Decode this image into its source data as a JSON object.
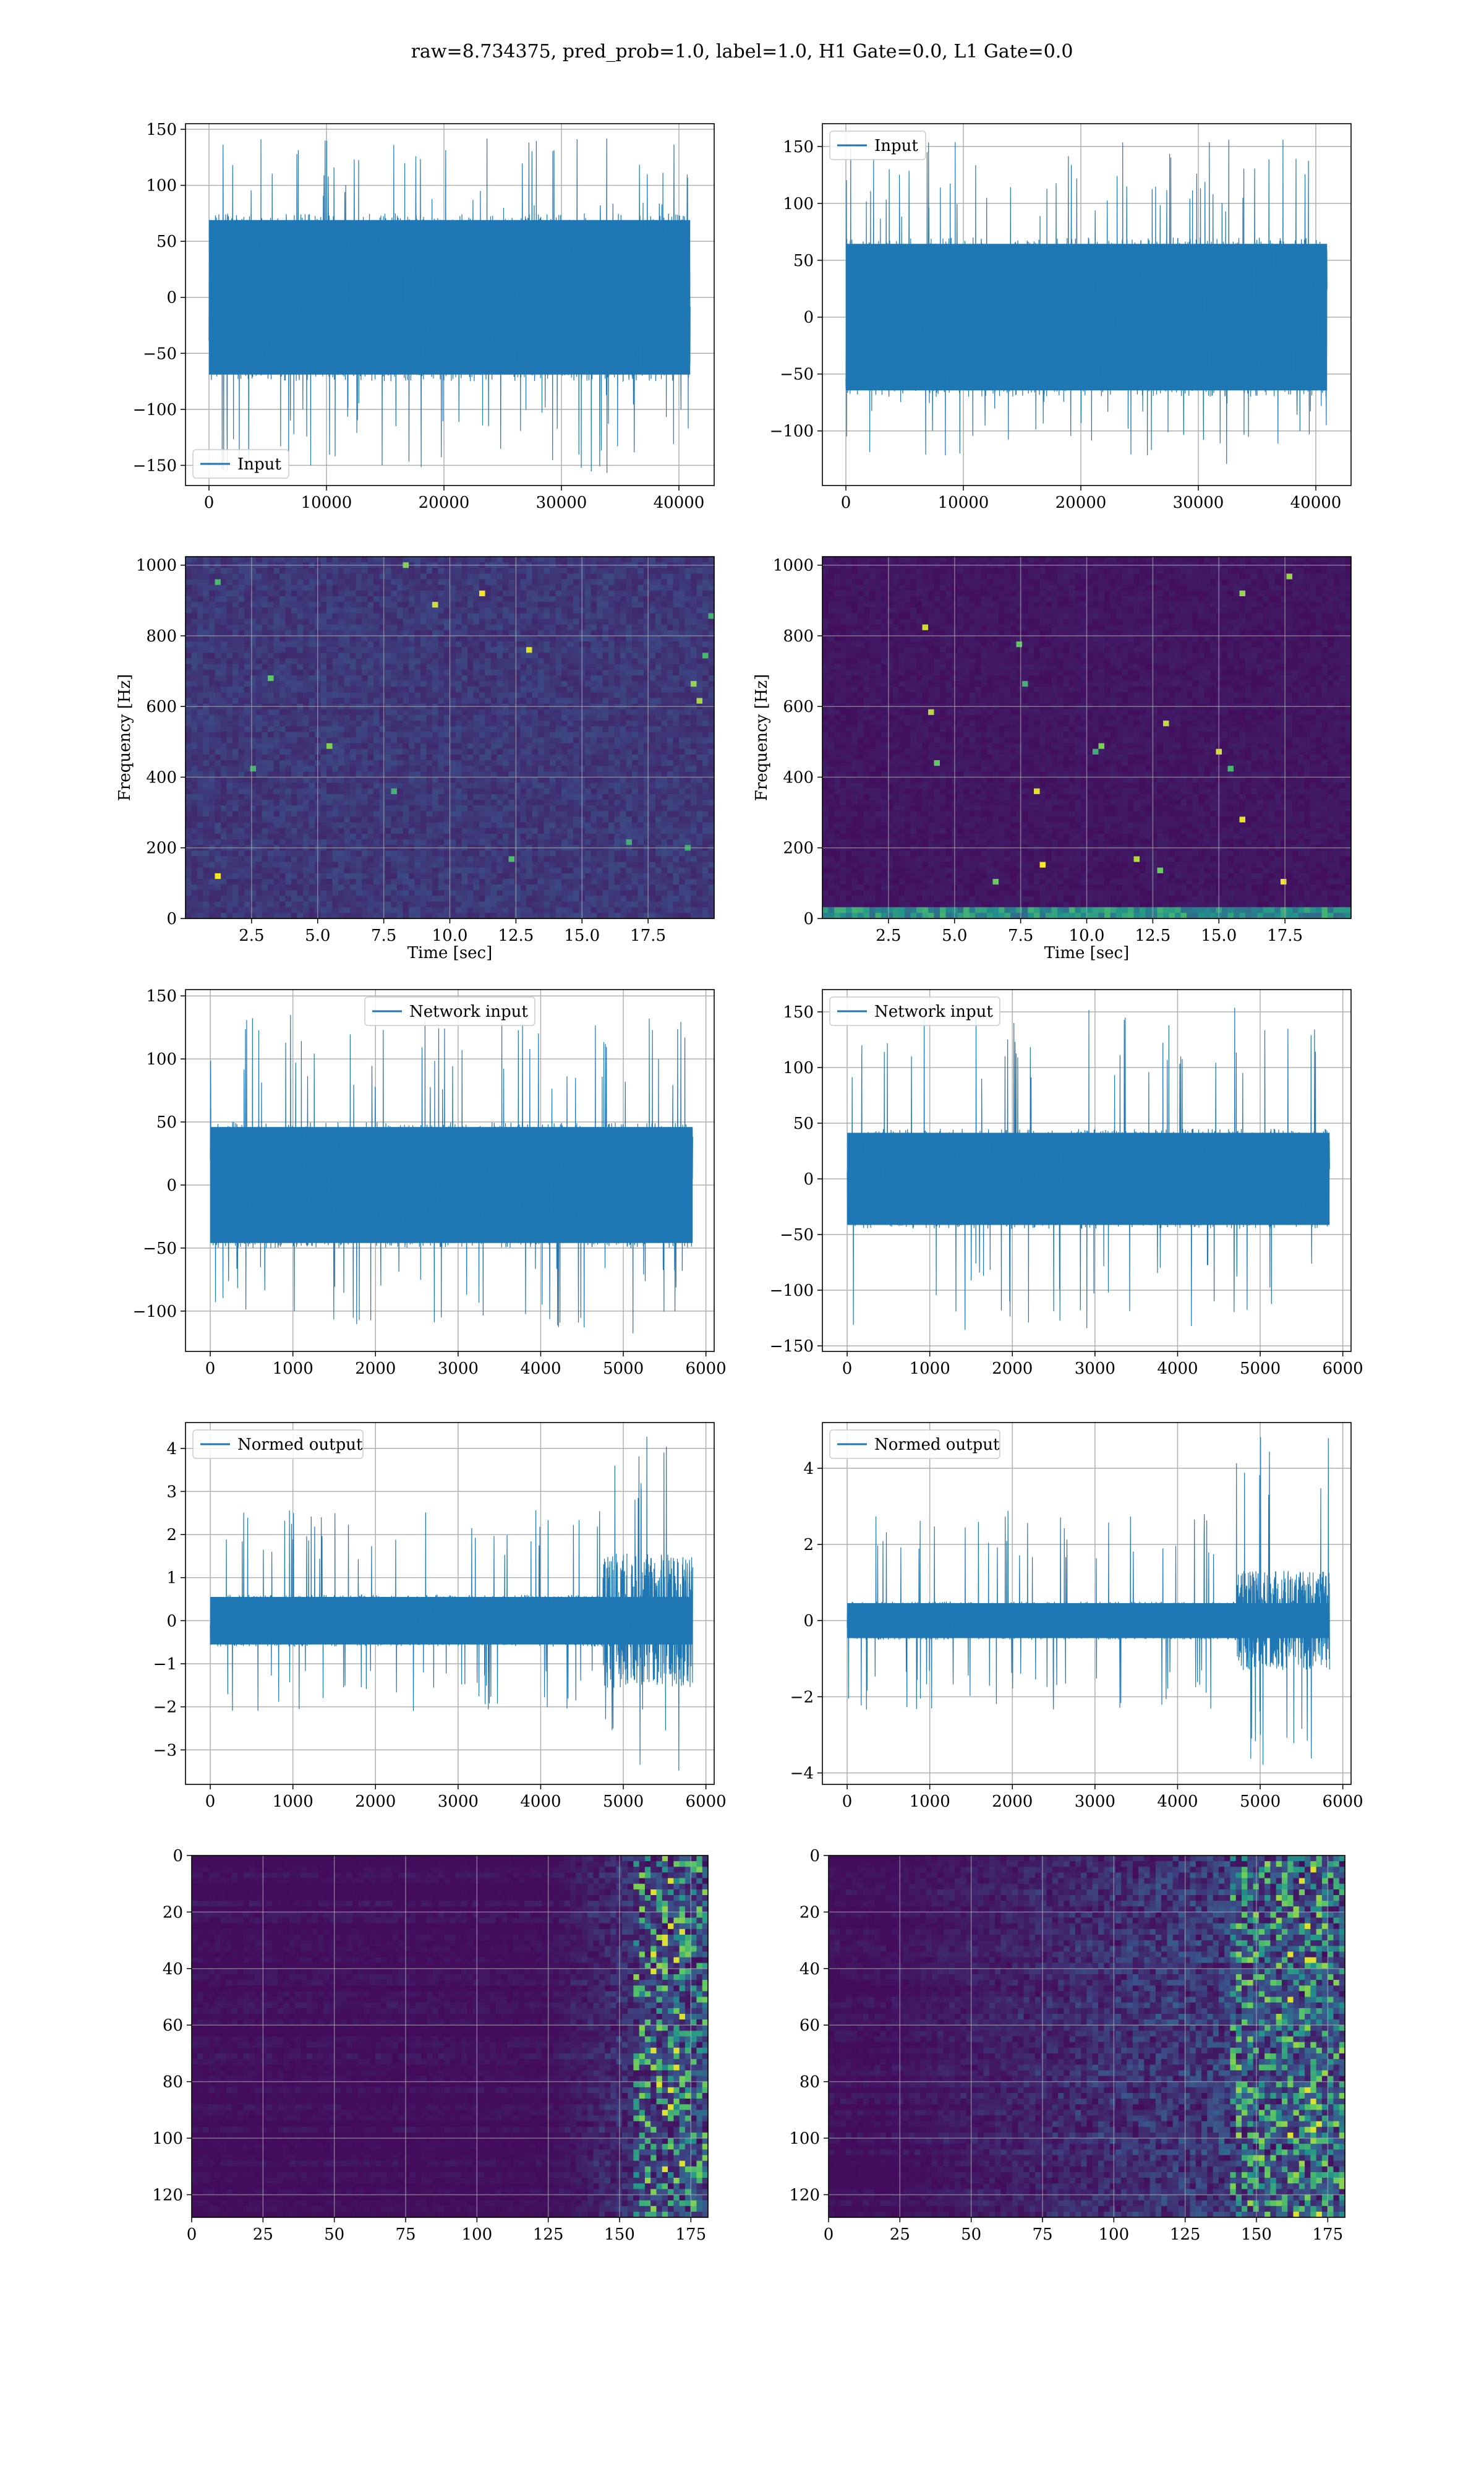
{
  "figure": {
    "suptitle": "raw=8.734375, pred_prob=1.0, label=1.0, H1 Gate=0.0, L1 Gate=0.0"
  },
  "colors": {
    "line": "#1f77b4",
    "grid": "#b0b0b0",
    "viridis_low": "#440154",
    "viridis_mid": "#21918c",
    "viridis_high": "#fde725"
  },
  "chart_data": [
    {
      "id": "h1-input",
      "type": "line",
      "legend": "Input",
      "legend_loc": "lower-left",
      "xlim": [
        -2000,
        43000
      ],
      "ylim": [
        -168,
        155
      ],
      "xticks": [
        0,
        10000,
        20000,
        30000,
        40000
      ],
      "yticks": [
        -150,
        -100,
        -50,
        0,
        50,
        100,
        150
      ],
      "xtick_labels": [
        "0",
        "10000",
        "20000",
        "30000",
        "40000"
      ],
      "ytick_labels": [
        "−150",
        "−100",
        "−50",
        "0",
        "50",
        "100",
        "150"
      ],
      "x_range": [
        0,
        40960
      ],
      "envelope": [
        -75,
        75
      ],
      "spike_range": [
        -158,
        142
      ],
      "grid": true,
      "xlabel": "",
      "ylabel": ""
    },
    {
      "id": "l1-input",
      "type": "line",
      "legend": "Input",
      "legend_loc": "upper-left",
      "xlim": [
        -2000,
        43000
      ],
      "ylim": [
        -148,
        170
      ],
      "xticks": [
        0,
        10000,
        20000,
        30000,
        40000
      ],
      "yticks": [
        -100,
        -50,
        0,
        50,
        100,
        150
      ],
      "xtick_labels": [
        "0",
        "10000",
        "20000",
        "30000",
        "40000"
      ],
      "ytick_labels": [
        "−100",
        "−50",
        "0",
        "50",
        "100",
        "150"
      ],
      "x_range": [
        0,
        40960
      ],
      "envelope": [
        -70,
        70
      ],
      "spike_range": [
        -132,
        156
      ],
      "grid": true,
      "xlabel": "",
      "ylabel": ""
    },
    {
      "id": "h1-spectrogram",
      "type": "heatmap",
      "colormap": "viridis",
      "xlim": [
        0,
        20
      ],
      "ylim": [
        0,
        1024
      ],
      "xticks": [
        2.5,
        5.0,
        7.5,
        10.0,
        12.5,
        15.0,
        17.5
      ],
      "yticks": [
        0,
        200,
        400,
        600,
        800,
        1000
      ],
      "xtick_labels": [
        "2.5",
        "5.0",
        "7.5",
        "10.0",
        "12.5",
        "15.0",
        "17.5"
      ],
      "ytick_labels": [
        "0",
        "200",
        "400",
        "600",
        "800",
        "1000"
      ],
      "xlabel": "Time [sec]",
      "ylabel": "Frequency [Hz]",
      "grid": true,
      "background_level": 0.12,
      "noise_level": 0.1
    },
    {
      "id": "l1-spectrogram",
      "type": "heatmap",
      "colormap": "viridis",
      "xlim": [
        0,
        20
      ],
      "ylim": [
        0,
        1024
      ],
      "xticks": [
        2.5,
        5.0,
        7.5,
        10.0,
        12.5,
        15.0,
        17.5
      ],
      "yticks": [
        0,
        200,
        400,
        600,
        800,
        1000
      ],
      "xtick_labels": [
        "2.5",
        "5.0",
        "7.5",
        "10.0",
        "12.5",
        "15.0",
        "17.5"
      ],
      "ytick_labels": [
        "0",
        "200",
        "400",
        "600",
        "800",
        "1000"
      ],
      "xlabel": "Time [sec]",
      "ylabel": "Frequency [Hz]",
      "grid": true,
      "background_level": 0.04,
      "noise_level": 0.05
    },
    {
      "id": "h1-network-input",
      "type": "line",
      "legend": "Network input",
      "legend_loc": "upper-center",
      "xlim": [
        -300,
        6100
      ],
      "ylim": [
        -132,
        155
      ],
      "xticks": [
        0,
        1000,
        2000,
        3000,
        4000,
        5000,
        6000
      ],
      "yticks": [
        -100,
        -50,
        0,
        50,
        100,
        150
      ],
      "xtick_labels": [
        "0",
        "1000",
        "2000",
        "3000",
        "4000",
        "5000",
        "6000"
      ],
      "ytick_labels": [
        "−100",
        "−50",
        "0",
        "50",
        "100",
        "150"
      ],
      "x_range": [
        0,
        5840
      ],
      "envelope": [
        -50,
        50
      ],
      "spike_range": [
        -118,
        136
      ],
      "grid": true,
      "xlabel": "",
      "ylabel": ""
    },
    {
      "id": "l1-network-input",
      "type": "line",
      "legend": "Network input",
      "legend_loc": "upper-left",
      "xlim": [
        -300,
        6100
      ],
      "ylim": [
        -155,
        170
      ],
      "xticks": [
        0,
        1000,
        2000,
        3000,
        4000,
        5000,
        6000
      ],
      "yticks": [
        -150,
        -100,
        -50,
        0,
        50,
        100,
        150
      ],
      "xtick_labels": [
        "0",
        "1000",
        "2000",
        "3000",
        "4000",
        "5000",
        "6000"
      ],
      "ytick_labels": [
        "−150",
        "−100",
        "−50",
        "0",
        "50",
        "100",
        "150"
      ],
      "x_range": [
        0,
        5840
      ],
      "envelope": [
        -45,
        45
      ],
      "spike_range": [
        -138,
        156
      ],
      "grid": true,
      "xlabel": "",
      "ylabel": ""
    },
    {
      "id": "h1-normed-output",
      "type": "line",
      "legend": "Normed output",
      "legend_loc": "upper-left",
      "xlim": [
        -300,
        6100
      ],
      "ylim": [
        -3.8,
        4.6
      ],
      "xticks": [
        0,
        1000,
        2000,
        3000,
        4000,
        5000,
        6000
      ],
      "yticks": [
        -3,
        -2,
        -1,
        0,
        1,
        2,
        3,
        4
      ],
      "xtick_labels": [
        "0",
        "1000",
        "2000",
        "3000",
        "4000",
        "5000",
        "6000"
      ],
      "ytick_labels": [
        "−3",
        "−2",
        "−1",
        "0",
        "1",
        "2",
        "3",
        "4"
      ],
      "x_range": [
        0,
        5840
      ],
      "envelope": [
        -0.6,
        0.6
      ],
      "spike_range": [
        -3.5,
        4.3
      ],
      "burst_start": 4750,
      "grid": true,
      "xlabel": "",
      "ylabel": ""
    },
    {
      "id": "l1-normed-output",
      "type": "line",
      "legend": "Normed output",
      "legend_loc": "upper-left",
      "xlim": [
        -300,
        6100
      ],
      "ylim": [
        -4.3,
        5.2
      ],
      "xticks": [
        0,
        1000,
        2000,
        3000,
        4000,
        5000,
        6000
      ],
      "yticks": [
        -4,
        -2,
        0,
        2,
        4
      ],
      "xtick_labels": [
        "0",
        "1000",
        "2000",
        "3000",
        "4000",
        "5000",
        "6000"
      ],
      "ytick_labels": [
        "−4",
        "−2",
        "0",
        "2",
        "4"
      ],
      "x_range": [
        0,
        5840
      ],
      "envelope": [
        -0.5,
        0.5
      ],
      "spike_range": [
        -3.9,
        4.9
      ],
      "burst_start": 4700,
      "grid": true,
      "xlabel": "",
      "ylabel": ""
    },
    {
      "id": "h1-feature-map",
      "type": "heatmap",
      "colormap": "viridis",
      "xlim": [
        0,
        181
      ],
      "ylim": [
        128,
        0
      ],
      "xticks": [
        0,
        25,
        50,
        75,
        100,
        125,
        150,
        175
      ],
      "yticks": [
        0,
        20,
        40,
        60,
        80,
        100,
        120
      ],
      "xtick_labels": [
        "0",
        "25",
        "50",
        "75",
        "100",
        "125",
        "150",
        "175"
      ],
      "ytick_labels": [
        "0",
        "20",
        "40",
        "60",
        "80",
        "100",
        "120"
      ],
      "grid": true,
      "xlabel": "",
      "ylabel": "",
      "activity_start": 125,
      "hot_start": 155
    },
    {
      "id": "l1-feature-map",
      "type": "heatmap",
      "colormap": "viridis",
      "xlim": [
        0,
        181
      ],
      "ylim": [
        128,
        0
      ],
      "xticks": [
        0,
        25,
        50,
        75,
        100,
        125,
        150,
        175
      ],
      "yticks": [
        0,
        20,
        40,
        60,
        80,
        100,
        120
      ],
      "xtick_labels": [
        "0",
        "25",
        "50",
        "75",
        "100",
        "125",
        "150",
        "175"
      ],
      "ytick_labels": [
        "0",
        "20",
        "40",
        "60",
        "80",
        "100",
        "120"
      ],
      "grid": true,
      "xlabel": "",
      "ylabel": "",
      "activity_start": 20,
      "hot_start": 140
    }
  ]
}
